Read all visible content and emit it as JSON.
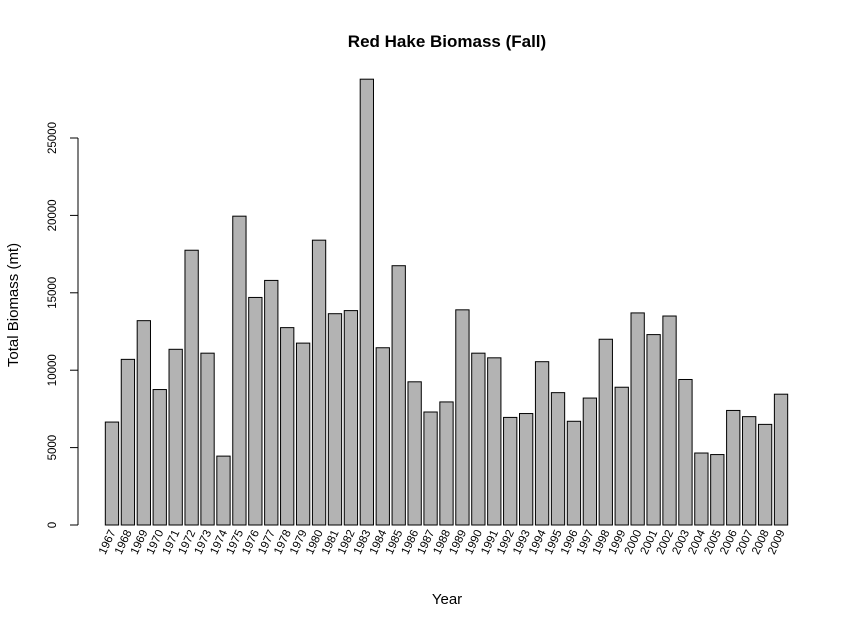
{
  "chart_data": {
    "type": "bar",
    "title": "Red Hake Biomass (Fall)",
    "xlabel": "Year",
    "ylabel": "Total Biomass (mt)",
    "ylim": [
      0,
      29000
    ],
    "yticks": [
      0,
      5000,
      10000,
      15000,
      20000,
      25000
    ],
    "grid": false,
    "categories": [
      "1967",
      "1968",
      "1969",
      "1970",
      "1971",
      "1972",
      "1973",
      "1974",
      "1975",
      "1976",
      "1977",
      "1978",
      "1979",
      "1980",
      "1981",
      "1982",
      "1983",
      "1984",
      "1985",
      "1986",
      "1987",
      "1988",
      "1989",
      "1990",
      "1991",
      "1992",
      "1993",
      "1994",
      "1995",
      "1996",
      "1997",
      "1998",
      "1999",
      "2000",
      "2001",
      "2002",
      "2003",
      "2004",
      "2005",
      "2006",
      "2007",
      "2008",
      "2009"
    ],
    "values": [
      6650,
      10700,
      13200,
      8750,
      11350,
      17750,
      11100,
      4450,
      19950,
      14700,
      15800,
      12750,
      11750,
      18400,
      13650,
      13850,
      28800,
      11450,
      16750,
      9250,
      7300,
      7950,
      13900,
      11100,
      10800,
      6950,
      7200,
      10550,
      8550,
      6700,
      8200,
      12000,
      8900,
      13700,
      12300,
      13500,
      9400,
      4650,
      4550,
      7400,
      7000,
      6500,
      8450
    ],
    "colors": {
      "bar_fill": "#b3b3b3",
      "bar_stroke": "#000000"
    }
  }
}
